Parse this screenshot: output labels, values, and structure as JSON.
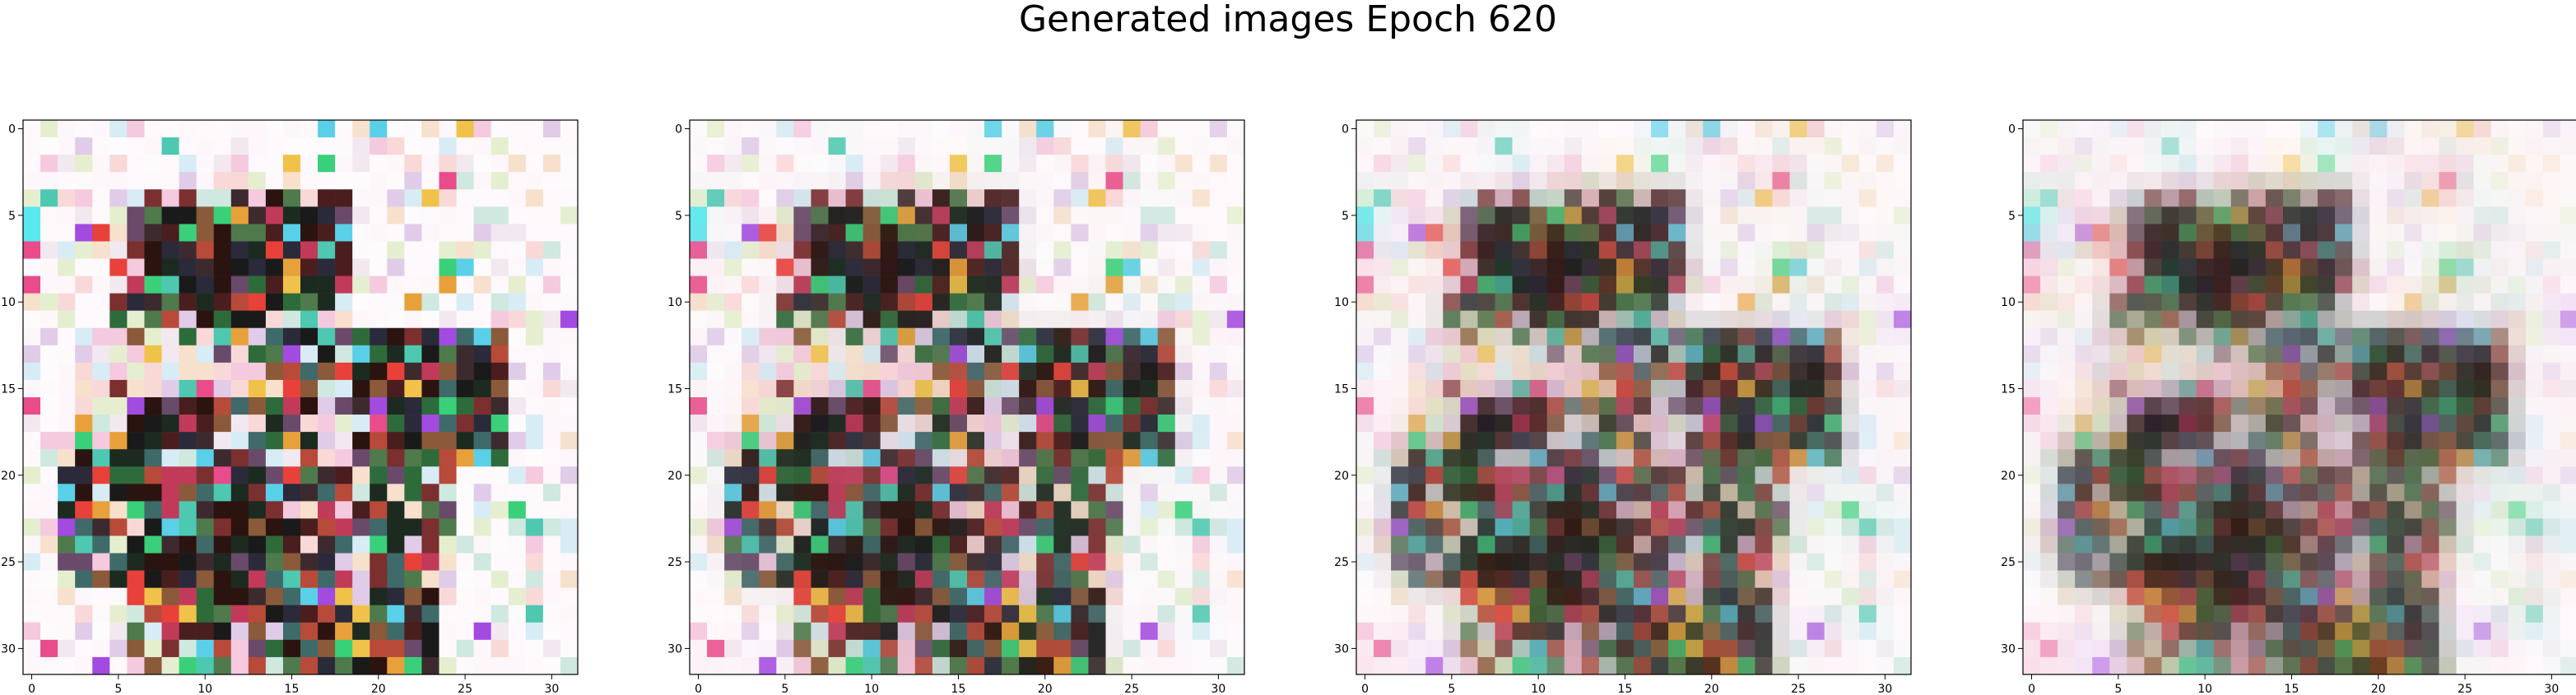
{
  "suptitle": "Generated images Epoch 620",
  "chart_data": {
    "type": "heatmap",
    "title": "Generated images Epoch 620",
    "panel_count": 4,
    "grid_size": [
      32,
      32
    ],
    "xlim": [
      -0.5,
      31.5
    ],
    "ylim": [
      31.5,
      -0.5
    ],
    "x_ticks": [
      0,
      5,
      10,
      15,
      20,
      25,
      30
    ],
    "y_ticks": [
      0,
      5,
      10,
      15,
      20,
      25,
      30
    ],
    "x_tick_labels": [
      "0",
      "5",
      "10",
      "15",
      "20",
      "25",
      "30"
    ],
    "y_tick_labels": [
      "0",
      "5",
      "10",
      "15",
      "20",
      "25",
      "30"
    ],
    "panels": [
      {
        "name": "image-1",
        "blur": 0.0
      },
      {
        "name": "image-2",
        "blur": 0.15
      },
      {
        "name": "image-3",
        "blur": 0.4
      },
      {
        "name": "image-4",
        "blur": 0.6
      }
    ],
    "palette": {
      "background": "#fdf6fa",
      "dark": [
        "#1a1a1a",
        "#2b1410",
        "#3d2a2e",
        "#1c2a20",
        "#2a2a3a",
        "#4a1e1e"
      ],
      "mid": [
        "#7c2f2f",
        "#8a5a3a",
        "#4e7a4c",
        "#3f6a6a",
        "#6a4a6a",
        "#b84a3a",
        "#c23a5a",
        "#2e6b3a"
      ],
      "bright": [
        "#e8413a",
        "#e84c8a",
        "#f0c24a",
        "#4ec8b0",
        "#a34ae0",
        "#5ad0e8",
        "#e8a03a",
        "#3ad07a"
      ],
      "pale": [
        "#f5c9de",
        "#e0cce8",
        "#d7ecf5",
        "#f7e0cc",
        "#e5efd0",
        "#f2e8f0",
        "#cfe8e0",
        "#f9d8d8"
      ]
    }
  }
}
